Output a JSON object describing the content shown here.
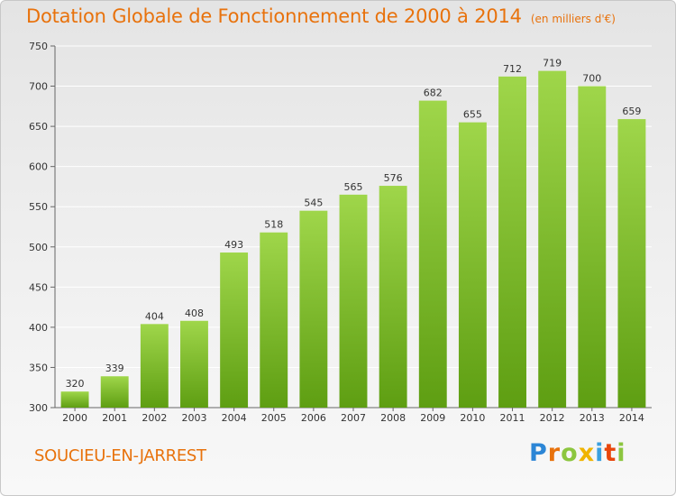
{
  "header": {
    "title": "Dotation Globale de Fonctionnement de 2000 à 2014",
    "subtitle": "(en milliers d'€)"
  },
  "footer": {
    "place": "SOUCIEU-EN-JARREST",
    "logo": "Proxiti"
  },
  "colors": {
    "title": "#e8720c",
    "bar_light": "#9fd64a",
    "bar_dark": "#5e9e12",
    "grid": "#ffffff"
  },
  "chart_data": {
    "type": "bar",
    "title": "Dotation Globale de Fonctionnement de 2000 à 2014",
    "subtitle": "(en milliers d'€)",
    "xlabel": "",
    "ylabel": "",
    "categories": [
      "2000",
      "2001",
      "2002",
      "2003",
      "2004",
      "2005",
      "2006",
      "2007",
      "2008",
      "2009",
      "2010",
      "2011",
      "2012",
      "2013",
      "2014"
    ],
    "values": [
      320,
      339,
      404,
      408,
      493,
      518,
      545,
      565,
      576,
      682,
      655,
      712,
      719,
      700,
      659
    ],
    "ylim": [
      300,
      750
    ],
    "yticks": [
      300,
      350,
      400,
      450,
      500,
      550,
      600,
      650,
      700,
      750
    ],
    "grid": true,
    "data_labels": true
  }
}
